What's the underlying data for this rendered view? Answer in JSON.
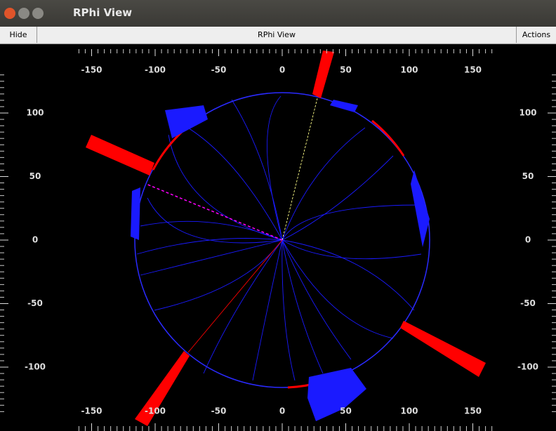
{
  "window": {
    "title": "RPhi View"
  },
  "toolbar": {
    "left": "Hide",
    "center": "RPhi View",
    "right": "Actions"
  },
  "view": {
    "xticks": [
      -150,
      -100,
      -50,
      0,
      50,
      100,
      150
    ],
    "yticks": [
      100,
      50,
      0,
      -50,
      -100
    ]
  }
}
